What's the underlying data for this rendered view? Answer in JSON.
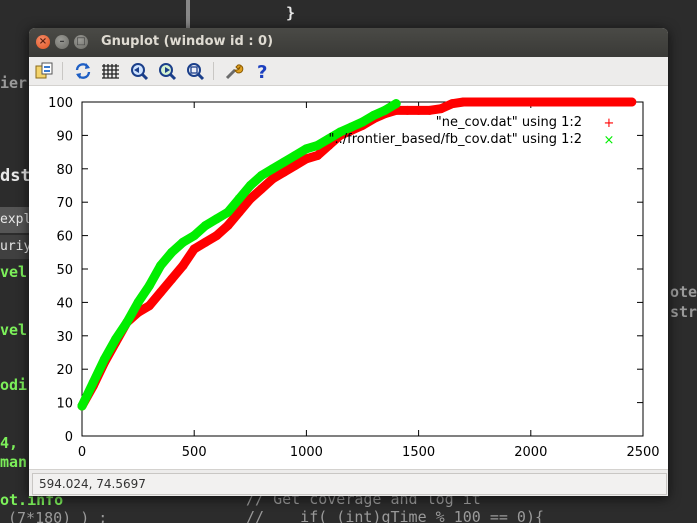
{
  "background": {
    "lines": [
      {
        "text": "}",
        "cls": "bg-white"
      },
      {
        "text": "ier",
        "cls": "bg-grey"
      },
      {
        "text": "dst",
        "cls": "bg-white"
      },
      {
        "text": "expl",
        "cls": "bg-white"
      },
      {
        "text": "uriya",
        "cls": "bg-white"
      },
      {
        "text": "vel",
        "cls": "bg-green"
      },
      {
        "text": "vel",
        "cls": "bg-green"
      },
      {
        "text": "odi",
        "cls": "bg-green"
      },
      {
        "text": "4,",
        "cls": "bg-green"
      },
      {
        "text": "man",
        "cls": "bg-green"
      },
      {
        "text": "ot.info",
        "cls": "bg-green"
      },
      {
        "text": "(7*180) ) ;",
        "cls": "bg-grey"
      },
      {
        "text": "otes",
        "cls": "bg-grey"
      },
      {
        "text": "str",
        "cls": "bg-grey"
      },
      {
        "text": "// Get coverage and log it",
        "cls": "bg-grey"
      },
      {
        "text": "//    if( (int)gTime % 100 == 0){",
        "cls": "bg-grey"
      }
    ]
  },
  "window": {
    "title": "Gnuplot (window id : 0)",
    "buttons": {
      "close": "×",
      "minimize": "–",
      "maximize": "□"
    }
  },
  "toolbar": {
    "icons": [
      "export-icon",
      "replot-icon",
      "grid-icon",
      "zoom-previous-icon",
      "zoom-next-icon",
      "autoscale-icon",
      "options-icon",
      "help-icon"
    ]
  },
  "status": {
    "coords": "594.024, 74.5697"
  },
  "chart_data": {
    "type": "line",
    "xlim": [
      0,
      2500
    ],
    "ylim": [
      0,
      100
    ],
    "xticks": [
      0,
      500,
      1000,
      1500,
      2000,
      2500
    ],
    "yticks": [
      0,
      10,
      20,
      30,
      40,
      50,
      60,
      70,
      80,
      90,
      100
    ],
    "legend_position": "top-right",
    "series": [
      {
        "name": "\"ne_cov.dat\" using 1:2",
        "marker": "+",
        "color": "#ff0000",
        "x": [
          0,
          50,
          100,
          150,
          200,
          250,
          300,
          350,
          400,
          450,
          500,
          550,
          600,
          650,
          700,
          750,
          800,
          850,
          900,
          950,
          1000,
          1050,
          1100,
          1150,
          1200,
          1250,
          1300,
          1350,
          1400,
          1450,
          1500,
          1550,
          1600,
          1650,
          1700,
          1800,
          1900,
          2000,
          2100,
          2200,
          2300,
          2450
        ],
        "y": [
          9,
          15,
          22,
          28,
          34,
          37,
          39,
          43,
          47,
          51,
          56,
          58,
          60,
          63,
          67,
          71,
          74,
          77,
          79,
          81,
          83,
          84,
          87,
          90,
          91.5,
          93,
          95,
          96.5,
          97.5,
          97.5,
          97.5,
          97.5,
          98,
          99.5,
          100,
          100,
          100,
          100,
          100,
          100,
          100,
          100
        ]
      },
      {
        "name": "\"../frontier_based/fb_cov.dat\" using 1:2",
        "marker": "×",
        "color": "#00ee00",
        "x": [
          0,
          50,
          100,
          150,
          200,
          250,
          300,
          350,
          400,
          450,
          500,
          550,
          600,
          650,
          700,
          750,
          800,
          850,
          900,
          950,
          1000,
          1050,
          1100,
          1150,
          1200,
          1250,
          1300,
          1350,
          1400
        ],
        "y": [
          9,
          16,
          23,
          29,
          34,
          40,
          45,
          51,
          55,
          58,
          60,
          63,
          65,
          67,
          71,
          75,
          78,
          80,
          82,
          84,
          86,
          87,
          89,
          91,
          92.5,
          94,
          96,
          97.5,
          99.5
        ]
      }
    ]
  }
}
